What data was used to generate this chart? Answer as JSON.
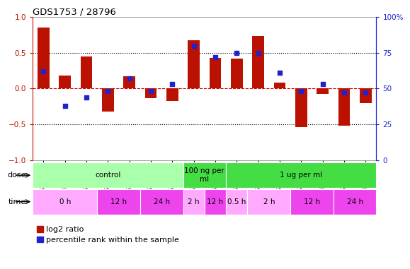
{
  "title": "GDS1753 / 28796",
  "samples": [
    "GSM93635",
    "GSM93638",
    "GSM93649",
    "GSM93641",
    "GSM93644",
    "GSM93645",
    "GSM93650",
    "GSM93646",
    "GSM93648",
    "GSM93642",
    "GSM93643",
    "GSM93639",
    "GSM93647",
    "GSM93637",
    "GSM93640",
    "GSM93636"
  ],
  "log2_ratio": [
    0.85,
    0.18,
    0.45,
    -0.32,
    0.17,
    -0.13,
    -0.17,
    0.68,
    0.43,
    0.42,
    0.73,
    0.08,
    -0.54,
    -0.08,
    -0.52,
    -0.2
  ],
  "pct_rank_pct": [
    62,
    38,
    44,
    48,
    57,
    48,
    53,
    80,
    72,
    75,
    75,
    61,
    48,
    53,
    47,
    47
  ],
  "dose_groups": [
    {
      "label": "control",
      "start": 0,
      "end": 7,
      "color": "#AAFFAA"
    },
    {
      "label": "100 ng per\nml",
      "start": 7,
      "end": 9,
      "color": "#44DD44"
    },
    {
      "label": "1 ug per ml",
      "start": 9,
      "end": 16,
      "color": "#44DD44"
    }
  ],
  "time_groups": [
    {
      "label": "0 h",
      "start": 0,
      "end": 3,
      "color": "#FFAAFF"
    },
    {
      "label": "12 h",
      "start": 3,
      "end": 5,
      "color": "#EE44EE"
    },
    {
      "label": "24 h",
      "start": 5,
      "end": 7,
      "color": "#EE44EE"
    },
    {
      "label": "2 h",
      "start": 7,
      "end": 8,
      "color": "#FFAAFF"
    },
    {
      "label": "12 h",
      "start": 8,
      "end": 9,
      "color": "#EE44EE"
    },
    {
      "label": "0.5 h",
      "start": 9,
      "end": 10,
      "color": "#FFAAFF"
    },
    {
      "label": "2 h",
      "start": 10,
      "end": 12,
      "color": "#FFAAFF"
    },
    {
      "label": "12 h",
      "start": 12,
      "end": 14,
      "color": "#EE44EE"
    },
    {
      "label": "24 h",
      "start": 14,
      "end": 16,
      "color": "#EE44EE"
    }
  ],
  "bar_color": "#BB1100",
  "dot_color": "#2222CC",
  "ylim": [
    -1,
    1
  ],
  "yticks_left": [
    -1,
    -0.5,
    0,
    0.5,
    1
  ],
  "yticks_right_vals": [
    0,
    25,
    50,
    75,
    100
  ],
  "yticks_right_labels": [
    "0",
    "25",
    "50",
    "75",
    "100%"
  ],
  "legend_items": [
    "log2 ratio",
    "percentile rank within the sample"
  ],
  "bar_width": 0.55
}
